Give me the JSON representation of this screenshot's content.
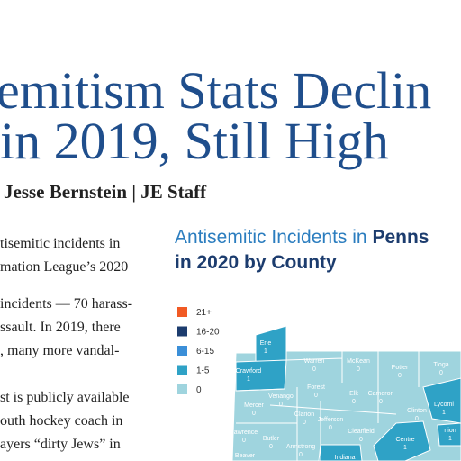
{
  "header": {
    "title_lines": [
      "emitism Stats Declin",
      "in 2019, Still High"
    ],
    "byline": "Jesse Bernstein | JE Staff"
  },
  "body": {
    "lines": [
      "tisemitic incidents in",
      "mation League’s 2020",
      "incidents — 70 harass-",
      "ssault. In 2019, there",
      ", many more vandal-",
      "st is publicly available",
      "outh hockey coach in",
      "ayers “dirty Jews” in"
    ]
  },
  "map": {
    "title": {
      "plain": "Antisemitic Incidents in ",
      "bold": "Penns",
      "line2": "in 2020 by County"
    },
    "legend": [
      {
        "label": "21+",
        "color": "#f15a24"
      },
      {
        "label": "16-20",
        "color": "#1c3c6e"
      },
      {
        "label": "6-15",
        "color": "#3b8fd8"
      },
      {
        "label": "1-5",
        "color": "#2fa2c6"
      },
      {
        "label": "0",
        "color": "#9fd4de"
      }
    ],
    "counties": [
      {
        "name": "Erie",
        "value": 1
      },
      {
        "name": "Crawford",
        "value": 1
      },
      {
        "name": "Warren",
        "value": 0
      },
      {
        "name": "McKean",
        "value": 0
      },
      {
        "name": "Potter",
        "value": 0
      },
      {
        "name": "Tioga",
        "value": 0
      },
      {
        "name": "Forest",
        "value": 0
      },
      {
        "name": "Venango",
        "value": 0
      },
      {
        "name": "Elk",
        "value": 0
      },
      {
        "name": "Cameron",
        "value": 0
      },
      {
        "name": "Mercer",
        "value": 0
      },
      {
        "name": "Clarion",
        "value": 0
      },
      {
        "name": "Jefferson",
        "value": 0
      },
      {
        "name": "Clinton",
        "value": 0
      },
      {
        "name": "Lycomi",
        "value": 1
      },
      {
        "name": "Clearfield",
        "value": 0
      },
      {
        "name": "Lawrence",
        "value": 0
      },
      {
        "name": "Butler",
        "value": 0
      },
      {
        "name": "Armstrong",
        "value": 0
      },
      {
        "name": "Centre",
        "value": 1
      },
      {
        "name": "nion",
        "value": 1
      },
      {
        "name": "Beaver"
      },
      {
        "name": "Indiana"
      }
    ]
  }
}
